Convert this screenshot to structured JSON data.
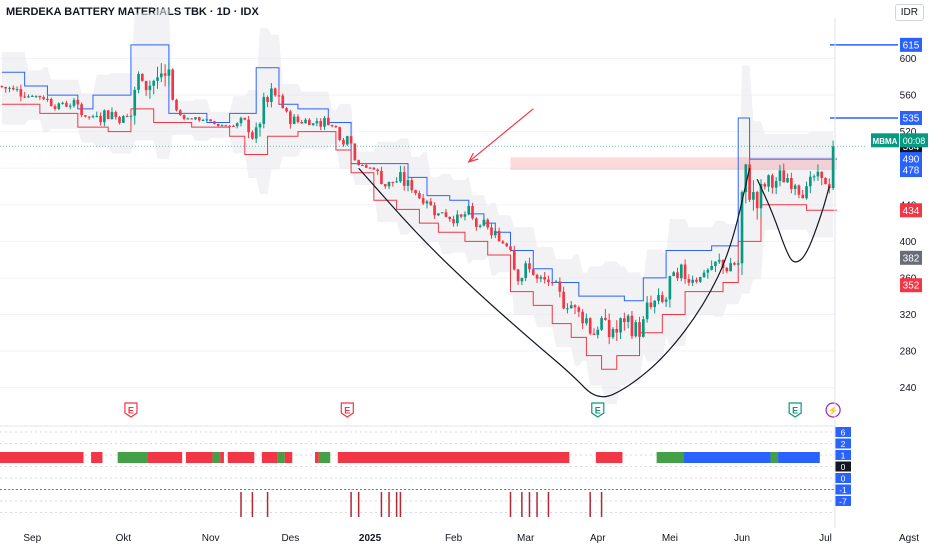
{
  "header": {
    "title": "MERDEKA BATTERY MATERIALS TBK · 1D · IDX",
    "currency": "IDR"
  },
  "chart_data": {
    "type": "candlestick",
    "symbol": "MBMA",
    "countdown": "00:08",
    "x_labels": [
      {
        "label": "Sep",
        "i": 8
      },
      {
        "label": "Okt",
        "i": 32
      },
      {
        "label": "Nov",
        "i": 55
      },
      {
        "label": "Des",
        "i": 76
      },
      {
        "label": "2025",
        "i": 97
      },
      {
        "label": "Feb",
        "i": 119
      },
      {
        "label": "Mar",
        "i": 138
      },
      {
        "label": "Apr",
        "i": 157
      },
      {
        "label": "Mei",
        "i": 176
      },
      {
        "label": "Jun",
        "i": 195
      },
      {
        "label": "Jul",
        "i": 217
      },
      {
        "label": "Agst",
        "i": 239
      }
    ],
    "y_ticks": [
      240,
      280,
      320,
      360,
      400,
      440,
      480,
      520,
      560,
      600
    ],
    "ylim": [
      210,
      640
    ],
    "price_tags": [
      {
        "value": 615,
        "text": "615",
        "color": "#2962ff"
      },
      {
        "value": 535,
        "text": "535",
        "color": "#2962ff"
      },
      {
        "value": 504,
        "text": "504",
        "color": "#131722"
      },
      {
        "value": 490,
        "text": "490",
        "color": "#2962ff"
      },
      {
        "value": 478,
        "text": "478",
        "color": "#2962ff"
      },
      {
        "value": 434,
        "text": "434",
        "color": "#f23645"
      },
      {
        "value": 382,
        "text": "382",
        "color": "#6a6d78"
      },
      {
        "value": 352,
        "text": "352",
        "color": "#f23645"
      }
    ],
    "last_price": 504,
    "earnings_markers": [
      {
        "i": 34,
        "label": "E",
        "color": "#f23645"
      },
      {
        "i": 91,
        "label": "E",
        "color": "#f23645"
      },
      {
        "i": 157,
        "label": "E",
        "color": "#089981"
      },
      {
        "i": 209,
        "label": "E",
        "color": "#089981"
      },
      {
        "i": 219,
        "label": "⚡",
        "color": "#9c27b0"
      }
    ],
    "n_bars": 220,
    "upper_channel": [
      [
        0,
        585
      ],
      [
        6,
        585
      ],
      [
        6,
        570
      ],
      [
        12,
        570
      ],
      [
        12,
        560
      ],
      [
        20,
        560
      ],
      [
        20,
        545
      ],
      [
        24,
        545
      ],
      [
        24,
        560
      ],
      [
        34,
        560
      ],
      [
        34,
        615
      ],
      [
        44,
        615
      ],
      [
        44,
        540
      ],
      [
        54,
        540
      ],
      [
        54,
        530
      ],
      [
        60,
        530
      ],
      [
        60,
        540
      ],
      [
        67,
        540
      ],
      [
        67,
        590
      ],
      [
        73,
        590
      ],
      [
        73,
        550
      ],
      [
        78,
        550
      ],
      [
        78,
        545
      ],
      [
        86,
        545
      ],
      [
        86,
        530
      ],
      [
        92,
        530
      ],
      [
        92,
        485
      ],
      [
        107,
        485
      ],
      [
        107,
        470
      ],
      [
        112,
        470
      ],
      [
        112,
        450
      ],
      [
        118,
        450
      ],
      [
        118,
        445
      ],
      [
        123,
        445
      ],
      [
        123,
        430
      ],
      [
        127,
        430
      ],
      [
        127,
        420
      ],
      [
        130,
        420
      ],
      [
        130,
        410
      ],
      [
        134,
        410
      ],
      [
        134,
        390
      ],
      [
        140,
        390
      ],
      [
        140,
        370
      ],
      [
        145,
        370
      ],
      [
        145,
        355
      ],
      [
        152,
        355
      ],
      [
        152,
        340
      ],
      [
        164,
        340
      ],
      [
        164,
        335
      ],
      [
        169,
        335
      ],
      [
        169,
        360
      ],
      [
        175,
        360
      ],
      [
        175,
        390
      ],
      [
        187,
        390
      ],
      [
        187,
        395
      ],
      [
        194,
        395
      ],
      [
        194,
        535
      ],
      [
        197,
        535
      ],
      [
        197,
        490
      ],
      [
        220,
        490
      ]
    ],
    "lower_channel": [
      [
        0,
        550
      ],
      [
        10,
        550
      ],
      [
        10,
        540
      ],
      [
        20,
        540
      ],
      [
        20,
        525
      ],
      [
        28,
        525
      ],
      [
        28,
        520
      ],
      [
        34,
        520
      ],
      [
        34,
        545
      ],
      [
        40,
        545
      ],
      [
        40,
        530
      ],
      [
        50,
        530
      ],
      [
        50,
        525
      ],
      [
        60,
        525
      ],
      [
        60,
        515
      ],
      [
        64,
        515
      ],
      [
        64,
        495
      ],
      [
        70,
        495
      ],
      [
        70,
        515
      ],
      [
        78,
        515
      ],
      [
        78,
        520
      ],
      [
        88,
        520
      ],
      [
        88,
        500
      ],
      [
        92,
        500
      ],
      [
        92,
        475
      ],
      [
        98,
        475
      ],
      [
        98,
        445
      ],
      [
        104,
        445
      ],
      [
        104,
        435
      ],
      [
        110,
        435
      ],
      [
        110,
        420
      ],
      [
        115,
        420
      ],
      [
        115,
        410
      ],
      [
        122,
        410
      ],
      [
        122,
        400
      ],
      [
        128,
        400
      ],
      [
        128,
        385
      ],
      [
        134,
        385
      ],
      [
        134,
        345
      ],
      [
        140,
        345
      ],
      [
        140,
        330
      ],
      [
        145,
        330
      ],
      [
        145,
        310
      ],
      [
        150,
        310
      ],
      [
        150,
        295
      ],
      [
        154,
        295
      ],
      [
        154,
        275
      ],
      [
        158,
        275
      ],
      [
        158,
        260
      ],
      [
        162,
        260
      ],
      [
        162,
        275
      ],
      [
        168,
        275
      ],
      [
        168,
        300
      ],
      [
        174,
        300
      ],
      [
        174,
        320
      ],
      [
        180,
        320
      ],
      [
        180,
        345
      ],
      [
        190,
        345
      ],
      [
        190,
        355
      ],
      [
        194,
        355
      ],
      [
        194,
        400
      ],
      [
        200,
        400
      ],
      [
        200,
        440
      ],
      [
        212,
        440
      ],
      [
        212,
        434
      ],
      [
        220,
        434
      ]
    ],
    "cup_curve": [
      [
        94,
        480
      ],
      [
        110,
        405
      ],
      [
        125,
        345
      ],
      [
        140,
        290
      ],
      [
        150,
        255
      ],
      [
        157,
        225
      ],
      [
        165,
        240
      ],
      [
        175,
        275
      ],
      [
        185,
        330
      ],
      [
        192,
        390
      ],
      [
        197,
        480
      ]
    ],
    "handle_curve": [
      [
        199,
        468
      ],
      [
        203,
        432
      ],
      [
        207,
        385
      ],
      [
        209,
        375
      ],
      [
        212,
        385
      ],
      [
        216,
        430
      ],
      [
        218,
        460
      ]
    ],
    "resistance_zone": {
      "from_i": 134,
      "to_i": 220,
      "low": 478,
      "high": 492
    },
    "arrow": {
      "from": [
        140,
        545
      ],
      "to": [
        123,
        487
      ]
    },
    "candles": []
  },
  "indicator": {
    "ticks_top": [
      "6",
      "2",
      "1",
      "0"
    ],
    "ticks_bottom": [
      "0",
      "-1",
      "-7"
    ],
    "bar_segments": [
      {
        "from": 0,
        "to": 22,
        "color": "#f23645"
      },
      {
        "from": 24,
        "to": 27,
        "color": "#f23645"
      },
      {
        "from": 31,
        "to": 39,
        "color": "#43a047"
      },
      {
        "from": 39,
        "to": 48,
        "color": "#f23645"
      },
      {
        "from": 49,
        "to": 56,
        "color": "#f23645"
      },
      {
        "from": 56,
        "to": 58,
        "color": "#43a047"
      },
      {
        "from": 58,
        "to": 59,
        "color": "#f23645"
      },
      {
        "from": 60,
        "to": 67,
        "color": "#f23645"
      },
      {
        "from": 69,
        "to": 73,
        "color": "#f23645"
      },
      {
        "from": 73,
        "to": 75,
        "color": "#43a047"
      },
      {
        "from": 75,
        "to": 77,
        "color": "#f23645"
      },
      {
        "from": 83,
        "to": 84,
        "color": "#f23645"
      },
      {
        "from": 84,
        "to": 87,
        "color": "#43a047"
      },
      {
        "from": 89,
        "to": 150,
        "color": "#f23645"
      },
      {
        "from": 157,
        "to": 164,
        "color": "#f23645"
      },
      {
        "from": 173,
        "to": 180,
        "color": "#43a047"
      },
      {
        "from": 180,
        "to": 203,
        "color": "#2962ff"
      },
      {
        "from": 203,
        "to": 205,
        "color": "#43a047"
      },
      {
        "from": 205,
        "to": 216,
        "color": "#2962ff"
      }
    ],
    "spike_groups": [
      63,
      66,
      70,
      92,
      94,
      100,
      102,
      104,
      105,
      134,
      137,
      139,
      141,
      144,
      155,
      158
    ]
  }
}
